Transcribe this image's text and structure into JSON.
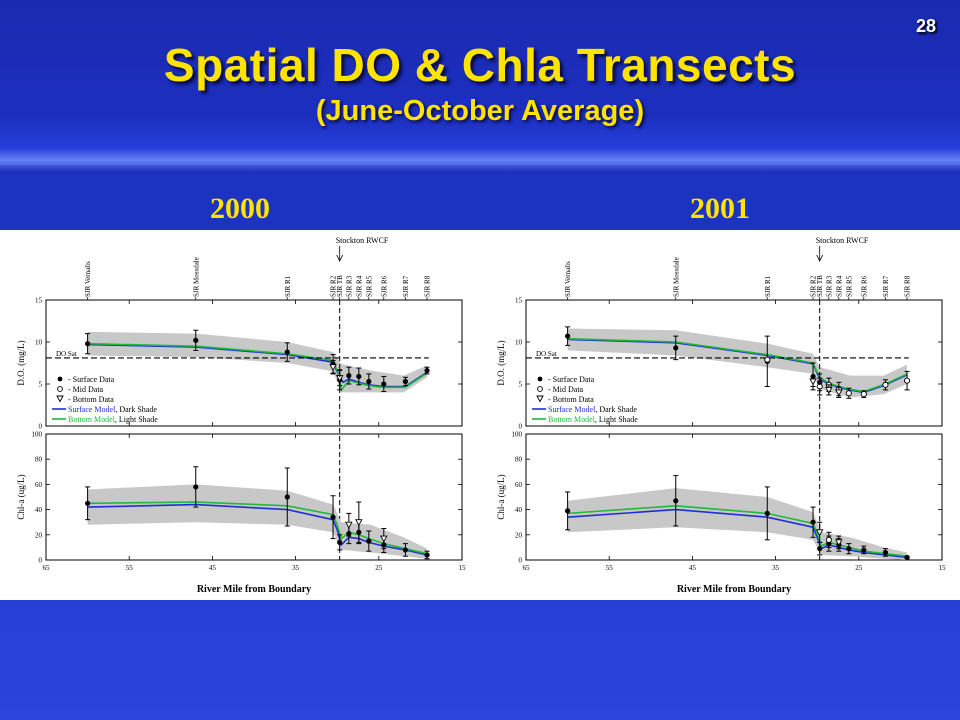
{
  "slide": {
    "number": "28",
    "title": "Spatial DO & Chla Transects",
    "subtitle": "(June-October Average)"
  },
  "colors": {
    "title": "#ffe400",
    "background": "#1d33c4",
    "surface_model": "#1f2fd8",
    "bottom_model": "#22b83a"
  },
  "shared_labels": {
    "xlabel": "River Mile from Boundary",
    "do_ylabel": "D.O. (mg/L)",
    "chl_ylabel": "Chl-a (ug/L)",
    "do_sat": "DO Sat",
    "stockton": "Stockton RWCF",
    "legend": [
      "- Surface Data",
      "- Mid Data",
      "- Bottom Data"
    ],
    "legend_surface_model": "Surface Model",
    "legend_surface_shade": ", Dark Shade",
    "legend_bottom_model": "Bottom Model",
    "legend_bottom_shade": ", Light Shade"
  },
  "chart_data": [
    {
      "id": "do-2000",
      "year": "2000",
      "type": "line",
      "xlim": [
        65,
        15
      ],
      "xticks": [
        65,
        55,
        45,
        35,
        25,
        15
      ],
      "ylim": [
        0,
        15
      ],
      "yticks": [
        0,
        5,
        10,
        15
      ],
      "stations": [
        {
          "name": "SJR Vernalis",
          "x": 60
        },
        {
          "name": "SJR Mossdale",
          "x": 47
        },
        {
          "name": "SJR R1",
          "x": 36
        },
        {
          "name": "SJR R2",
          "x": 30.5
        },
        {
          "name": "SJR TB",
          "x": 29.7
        },
        {
          "name": "SJR R3",
          "x": 28.6
        },
        {
          "name": "SJR R4",
          "x": 27.4
        },
        {
          "name": "SJR R5",
          "x": 26.2
        },
        {
          "name": "SJR R6",
          "x": 24.4
        },
        {
          "name": "SJR R7",
          "x": 21.8
        },
        {
          "name": "SJR R8",
          "x": 19.2
        }
      ],
      "do_sat": 8.1,
      "stockton_x": 29.7,
      "surface_model": [
        [
          60,
          9.7
        ],
        [
          47,
          9.4
        ],
        [
          36,
          8.5
        ],
        [
          30.5,
          7.6
        ],
        [
          29.8,
          6.0
        ],
        [
          29.3,
          5.2
        ],
        [
          28.6,
          5.6
        ],
        [
          27.4,
          5.2
        ],
        [
          26.2,
          4.9
        ],
        [
          24.4,
          4.7
        ],
        [
          21.8,
          4.7
        ],
        [
          19.2,
          6.4
        ]
      ],
      "bottom_model": [
        [
          60,
          9.8
        ],
        [
          47,
          9.5
        ],
        [
          36,
          8.6
        ],
        [
          30.5,
          7.8
        ],
        [
          29.8,
          6.1
        ],
        [
          29.5,
          4.3
        ],
        [
          28.6,
          5.4
        ],
        [
          27.4,
          5.1
        ],
        [
          26.2,
          4.8
        ],
        [
          24.4,
          4.6
        ],
        [
          21.8,
          4.6
        ],
        [
          19.2,
          6.3
        ]
      ],
      "band": {
        "upper": [
          [
            60,
            11.2
          ],
          [
            47,
            11.0
          ],
          [
            36,
            10.0
          ],
          [
            30.5,
            8.8
          ],
          [
            29.5,
            7.4
          ],
          [
            26,
            6.6
          ],
          [
            22,
            6.0
          ],
          [
            19.2,
            7.2
          ]
        ],
        "lower": [
          [
            60,
            8.4
          ],
          [
            47,
            8.2
          ],
          [
            36,
            7.5
          ],
          [
            30.5,
            6.5
          ],
          [
            29.5,
            4.0
          ],
          [
            26,
            4.0
          ],
          [
            22,
            4.0
          ],
          [
            19.2,
            5.8
          ]
        ]
      },
      "surface_data": [
        {
          "x": 60,
          "y": 9.8,
          "err": 1.2
        },
        {
          "x": 47,
          "y": 10.2,
          "err": 1.2
        },
        {
          "x": 36,
          "y": 8.8,
          "err": 1.1
        },
        {
          "x": 30.5,
          "y": 7.4,
          "err": 1.1
        },
        {
          "x": 29.7,
          "y": 5.5,
          "err": 1.2
        },
        {
          "x": 28.6,
          "y": 6.0,
          "err": 1.0
        },
        {
          "x": 27.4,
          "y": 5.9,
          "err": 1.0
        },
        {
          "x": 26.2,
          "y": 5.3,
          "err": 0.9
        },
        {
          "x": 24.4,
          "y": 5.0,
          "err": 0.9
        },
        {
          "x": 21.8,
          "y": 5.3,
          "err": 0.5
        },
        {
          "x": 19.2,
          "y": 6.6,
          "err": 0.4
        }
      ],
      "mid_data": [],
      "bottom_data": [
        {
          "x": 30.5,
          "y": 7.0,
          "err": 0.8
        },
        {
          "x": 29.7,
          "y": 5.7,
          "err": 0.9
        }
      ]
    },
    {
      "id": "chl-2000",
      "year": "2000",
      "type": "line",
      "xlim": [
        65,
        15
      ],
      "xticks": [
        65,
        55,
        45,
        35,
        25,
        15
      ],
      "ylim": [
        0,
        100
      ],
      "yticks": [
        0,
        20,
        40,
        60,
        80,
        100
      ],
      "stockton_x": 29.7,
      "surface_model": [
        [
          60,
          42
        ],
        [
          47,
          44
        ],
        [
          36,
          40
        ],
        [
          30.5,
          32
        ],
        [
          30,
          24
        ],
        [
          29.5,
          12
        ],
        [
          28.6,
          18
        ],
        [
          27.4,
          17
        ],
        [
          26.2,
          14
        ],
        [
          24.4,
          11
        ],
        [
          21.8,
          8
        ],
        [
          19.2,
          4
        ]
      ],
      "bottom_model": [
        [
          60,
          45
        ],
        [
          47,
          46
        ],
        [
          36,
          43
        ],
        [
          30.5,
          36
        ],
        [
          30,
          28
        ],
        [
          29.5,
          17
        ],
        [
          28.6,
          22
        ],
        [
          27.4,
          20
        ],
        [
          26.2,
          17
        ],
        [
          24.4,
          13
        ],
        [
          21.8,
          9
        ],
        [
          19.2,
          5
        ]
      ],
      "band": {
        "upper": [
          [
            60,
            56
          ],
          [
            47,
            60
          ],
          [
            36,
            55
          ],
          [
            30.5,
            44
          ],
          [
            29.5,
            30
          ],
          [
            26,
            28
          ],
          [
            22,
            18
          ],
          [
            19.2,
            9
          ]
        ],
        "lower": [
          [
            60,
            28
          ],
          [
            47,
            30
          ],
          [
            36,
            28
          ],
          [
            30.5,
            22
          ],
          [
            29.5,
            8
          ],
          [
            26,
            6
          ],
          [
            22,
            3
          ],
          [
            19.2,
            1
          ]
        ]
      },
      "surface_data": [
        {
          "x": 60,
          "y": 45,
          "err": 13
        },
        {
          "x": 47,
          "y": 58,
          "err": 16
        },
        {
          "x": 36,
          "y": 50,
          "err": 23
        },
        {
          "x": 30.5,
          "y": 34,
          "err": 17
        },
        {
          "x": 29.7,
          "y": 14,
          "err": 6
        },
        {
          "x": 28.6,
          "y": 21,
          "err": 8
        },
        {
          "x": 27.4,
          "y": 22,
          "err": 9
        },
        {
          "x": 26.2,
          "y": 15,
          "err": 8
        },
        {
          "x": 24.4,
          "y": 12,
          "err": 6
        },
        {
          "x": 21.8,
          "y": 8,
          "err": 5
        },
        {
          "x": 19.2,
          "y": 4,
          "err": 3
        }
      ],
      "mid_data": [],
      "bottom_data": [
        {
          "x": 28.6,
          "y": 28,
          "err": 9
        },
        {
          "x": 27.4,
          "y": 30,
          "err": 16
        },
        {
          "x": 24.4,
          "y": 17,
          "err": 8
        }
      ]
    },
    {
      "id": "do-2001",
      "year": "2001",
      "type": "line",
      "xlim": [
        65,
        15
      ],
      "xticks": [
        65,
        55,
        45,
        35,
        25,
        15
      ],
      "ylim": [
        0,
        15
      ],
      "yticks": [
        0,
        5,
        10,
        15
      ],
      "stations": [
        {
          "name": "SJR Vernalis",
          "x": 60
        },
        {
          "name": "SJR Mossdale",
          "x": 47
        },
        {
          "name": "SJR R1",
          "x": 36
        },
        {
          "name": "SJR R2",
          "x": 30.5
        },
        {
          "name": "SJR TB",
          "x": 29.7
        },
        {
          "name": "SJR R3",
          "x": 28.6
        },
        {
          "name": "SJR R4",
          "x": 27.4
        },
        {
          "name": "SJR R5",
          "x": 26.2
        },
        {
          "name": "SJR R6",
          "x": 24.4
        },
        {
          "name": "SJR R7",
          "x": 21.8
        },
        {
          "name": "SJR R8",
          "x": 19.2
        }
      ],
      "do_sat": 8.1,
      "stockton_x": 29.7,
      "surface_model": [
        [
          60,
          10.3
        ],
        [
          47,
          9.9
        ],
        [
          36,
          8.4
        ],
        [
          30.5,
          7.4
        ],
        [
          29.7,
          5.6
        ],
        [
          28.6,
          5.0
        ],
        [
          27.4,
          4.6
        ],
        [
          26.2,
          4.3
        ],
        [
          24.4,
          4.0
        ],
        [
          21.8,
          4.9
        ],
        [
          19.2,
          6.1
        ]
      ],
      "bottom_model": [
        [
          60,
          10.4
        ],
        [
          47,
          10.0
        ],
        [
          36,
          8.5
        ],
        [
          30.5,
          7.5
        ],
        [
          29.7,
          5.8
        ],
        [
          28.6,
          5.1
        ],
        [
          27.4,
          4.7
        ],
        [
          26.2,
          4.4
        ],
        [
          24.4,
          4.1
        ],
        [
          21.8,
          5.0
        ],
        [
          19.2,
          6.2
        ]
      ],
      "band": {
        "upper": [
          [
            60,
            11.6
          ],
          [
            47,
            11.4
          ],
          [
            36,
            9.8
          ],
          [
            30.5,
            8.6
          ],
          [
            29.7,
            7.0
          ],
          [
            26,
            6.0
          ],
          [
            22,
            6.0
          ],
          [
            19.2,
            7.3
          ]
        ],
        "lower": [
          [
            60,
            9.0
          ],
          [
            47,
            8.4
          ],
          [
            36,
            7.0
          ],
          [
            30.5,
            6.2
          ],
          [
            29.7,
            4.4
          ],
          [
            26,
            3.4
          ],
          [
            22,
            3.8
          ],
          [
            19.2,
            5.0
          ]
        ]
      },
      "surface_data": [
        {
          "x": 60,
          "y": 10.7,
          "err": 1.1
        },
        {
          "x": 47,
          "y": 9.3,
          "err": 1.4
        },
        {
          "x": 36,
          "y": 7.7,
          "err": 3.0
        },
        {
          "x": 30.5,
          "y": 5.9,
          "err": 1.6
        },
        {
          "x": 29.7,
          "y": 5.2,
          "err": 1.0
        }
      ],
      "mid_data": [
        {
          "x": 36,
          "y": 7.9,
          "err": 0.0
        },
        {
          "x": 29.7,
          "y": 4.7,
          "err": 1.0
        },
        {
          "x": 28.6,
          "y": 4.9,
          "err": 0.8
        },
        {
          "x": 27.4,
          "y": 4.4,
          "err": 0.8
        },
        {
          "x": 26.2,
          "y": 3.9,
          "err": 0.6
        },
        {
          "x": 24.4,
          "y": 3.8,
          "err": 0.4
        },
        {
          "x": 21.8,
          "y": 4.9,
          "err": 0.6
        },
        {
          "x": 19.2,
          "y": 5.4,
          "err": 1.1
        }
      ],
      "bottom_data": [
        {
          "x": 30.5,
          "y": 5.3,
          "err": 0.6
        },
        {
          "x": 28.6,
          "y": 4.3,
          "err": 0.6
        },
        {
          "x": 27.4,
          "y": 4.0,
          "err": 0.6
        }
      ]
    },
    {
      "id": "chl-2001",
      "year": "2001",
      "type": "line",
      "xlim": [
        65,
        15
      ],
      "xticks": [
        65,
        55,
        45,
        35,
        25,
        15
      ],
      "ylim": [
        0,
        100
      ],
      "yticks": [
        0,
        20,
        40,
        60,
        80,
        100
      ],
      "stockton_x": 29.7,
      "surface_model": [
        [
          60,
          34
        ],
        [
          47,
          40
        ],
        [
          36,
          34
        ],
        [
          30.5,
          26
        ],
        [
          30,
          18
        ],
        [
          29.5,
          9
        ],
        [
          28.6,
          12
        ],
        [
          27.4,
          10
        ],
        [
          26.2,
          8
        ],
        [
          24.4,
          6
        ],
        [
          21.8,
          4
        ],
        [
          19.2,
          2
        ]
      ],
      "bottom_model": [
        [
          60,
          37
        ],
        [
          47,
          43
        ],
        [
          36,
          37
        ],
        [
          30.5,
          29
        ],
        [
          30,
          21
        ],
        [
          29.5,
          11
        ],
        [
          28.6,
          14
        ],
        [
          27.4,
          12
        ],
        [
          26.2,
          10
        ],
        [
          24.4,
          7
        ],
        [
          21.8,
          5
        ],
        [
          19.2,
          3
        ]
      ],
      "band": {
        "upper": [
          [
            60,
            47
          ],
          [
            47,
            57
          ],
          [
            36,
            50
          ],
          [
            30.5,
            38
          ],
          [
            29.5,
            22
          ],
          [
            26,
            18
          ],
          [
            22,
            10
          ],
          [
            19.2,
            6
          ]
        ],
        "lower": [
          [
            60,
            22
          ],
          [
            47,
            26
          ],
          [
            36,
            22
          ],
          [
            30.5,
            16
          ],
          [
            29.5,
            4
          ],
          [
            26,
            3
          ],
          [
            22,
            1
          ],
          [
            19.2,
            0
          ]
        ]
      },
      "surface_data": [
        {
          "x": 60,
          "y": 39,
          "err": 15
        },
        {
          "x": 47,
          "y": 47,
          "err": 20
        },
        {
          "x": 36,
          "y": 37,
          "err": 21
        },
        {
          "x": 30.5,
          "y": 30,
          "err": 12
        },
        {
          "x": 29.7,
          "y": 9,
          "err": 5
        },
        {
          "x": 28.6,
          "y": 13,
          "err": 6
        },
        {
          "x": 27.4,
          "y": 12,
          "err": 5
        },
        {
          "x": 26.2,
          "y": 9,
          "err": 4
        },
        {
          "x": 24.4,
          "y": 8,
          "err": 3
        },
        {
          "x": 21.8,
          "y": 6,
          "err": 3
        },
        {
          "x": 19.2,
          "y": 2,
          "err": 1
        }
      ],
      "mid_data": [
        {
          "x": 28.6,
          "y": 16,
          "err": 6
        }
      ],
      "bottom_data": [
        {
          "x": 29.7,
          "y": 22,
          "err": 8
        },
        {
          "x": 27.4,
          "y": 14,
          "err": 5
        }
      ]
    }
  ]
}
